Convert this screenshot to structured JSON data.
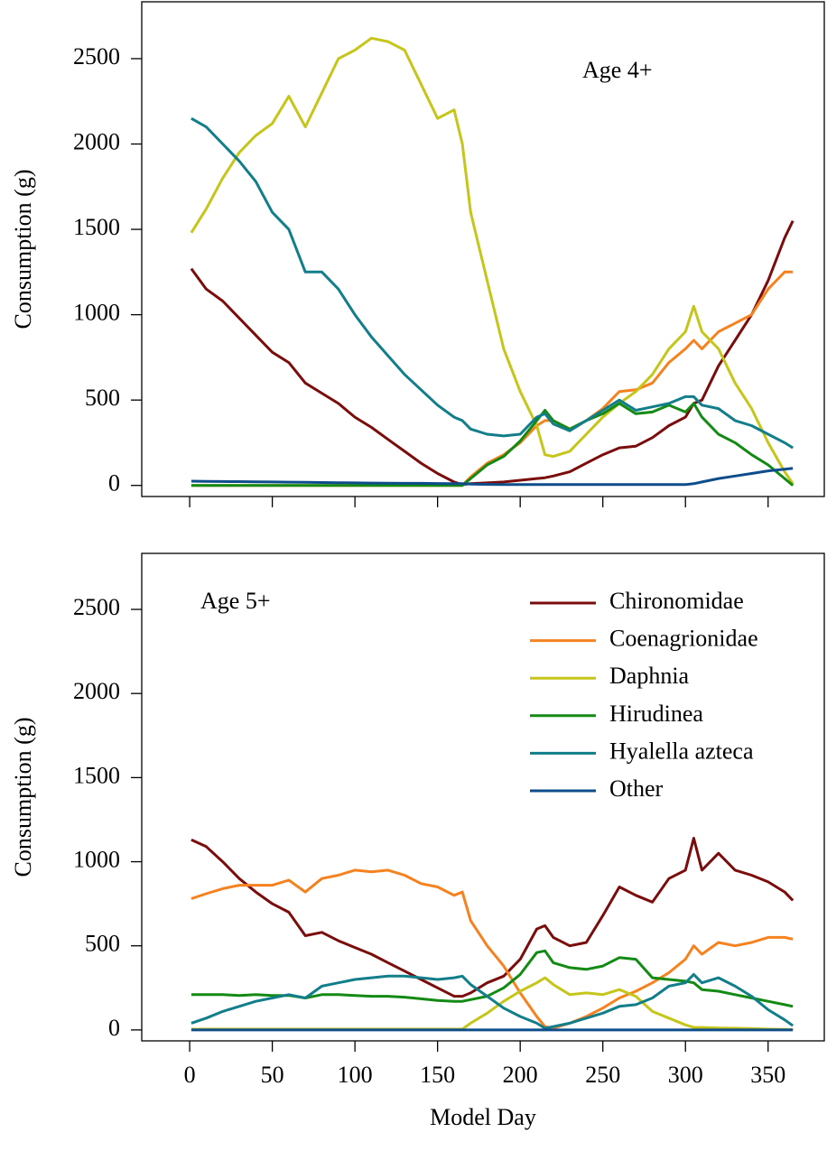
{
  "chart_data": [
    {
      "type": "line",
      "annotation": "Age 4+",
      "y_label": "Consumption (g)",
      "xlim": [
        -29,
        384
      ],
      "ylim": [
        -65,
        2833
      ],
      "xticks": [
        0,
        50,
        100,
        150,
        200,
        250,
        300,
        350
      ],
      "yticks": [
        0,
        500,
        1000,
        1500,
        2000,
        2500
      ],
      "show_xtick_labels": false,
      "legend": false,
      "x": [
        1,
        10,
        20,
        30,
        40,
        50,
        60,
        70,
        80,
        90,
        100,
        110,
        120,
        130,
        140,
        150,
        160,
        165,
        170,
        180,
        190,
        200,
        210,
        215,
        220,
        230,
        240,
        250,
        260,
        270,
        280,
        290,
        300,
        305,
        310,
        320,
        330,
        340,
        350,
        360,
        365
      ],
      "series": [
        {
          "color": "#7b0c0c",
          "values": [
            1270,
            1150,
            1080,
            980,
            880,
            780,
            720,
            600,
            540,
            480,
            400,
            340,
            270,
            200,
            130,
            70,
            20,
            5,
            10,
            15,
            20,
            30,
            40,
            45,
            55,
            80,
            130,
            180,
            220,
            230,
            280,
            350,
            400,
            480,
            500,
            700,
            850,
            1000,
            1200,
            1450,
            1550
          ]
        },
        {
          "color": "#f5821f",
          "values": [
            0,
            0,
            0,
            0,
            0,
            0,
            0,
            0,
            0,
            0,
            0,
            0,
            0,
            0,
            0,
            0,
            0,
            0,
            50,
            130,
            180,
            250,
            350,
            380,
            380,
            330,
            380,
            450,
            550,
            560,
            600,
            720,
            800,
            850,
            800,
            900,
            950,
            1000,
            1150,
            1250,
            1250
          ]
        },
        {
          "color": "#c5c51a",
          "values": [
            1480,
            1620,
            1800,
            1950,
            2050,
            2120,
            2280,
            2100,
            2300,
            2500,
            2550,
            2620,
            2600,
            2550,
            2350,
            2150,
            2200,
            2000,
            1600,
            1200,
            800,
            550,
            350,
            180,
            170,
            200,
            300,
            400,
            480,
            550,
            650,
            800,
            900,
            1050,
            900,
            800,
            600,
            450,
            250,
            80,
            10
          ]
        },
        {
          "color": "#138a13",
          "values": [
            0,
            0,
            0,
            0,
            0,
            0,
            0,
            0,
            0,
            0,
            0,
            0,
            0,
            0,
            0,
            0,
            0,
            0,
            40,
            120,
            170,
            260,
            380,
            440,
            380,
            330,
            380,
            420,
            480,
            420,
            430,
            470,
            430,
            480,
            400,
            300,
            250,
            180,
            120,
            40,
            0
          ]
        },
        {
          "color": "#117e8a",
          "values": [
            2150,
            2100,
            2000,
            1900,
            1780,
            1600,
            1500,
            1250,
            1250,
            1150,
            1000,
            870,
            760,
            650,
            560,
            470,
            400,
            380,
            330,
            300,
            290,
            300,
            400,
            420,
            360,
            320,
            380,
            440,
            500,
            440,
            460,
            480,
            520,
            520,
            470,
            450,
            380,
            350,
            300,
            250,
            220
          ]
        },
        {
          "color": "#0e4d8c",
          "values": [
            25,
            24,
            23,
            22,
            21,
            20,
            19,
            18,
            17,
            16,
            15,
            14,
            13,
            12,
            12,
            11,
            10,
            10,
            8,
            6,
            5,
            5,
            5,
            5,
            5,
            5,
            5,
            5,
            5,
            5,
            5,
            5,
            5,
            10,
            20,
            40,
            55,
            70,
            85,
            95,
            100
          ]
        }
      ]
    },
    {
      "type": "line",
      "annotation": "Age 5+",
      "y_label": "Consumption (g)",
      "x_label": "Model Day",
      "xlim": [
        -29,
        384
      ],
      "ylim": [
        -65,
        2833
      ],
      "xticks": [
        0,
        50,
        100,
        150,
        200,
        250,
        300,
        350
      ],
      "yticks": [
        0,
        500,
        1000,
        1500,
        2000,
        2500
      ],
      "show_xtick_labels": true,
      "legend": "upper right",
      "x": [
        1,
        10,
        20,
        30,
        40,
        50,
        60,
        70,
        80,
        90,
        100,
        110,
        120,
        130,
        140,
        150,
        160,
        165,
        170,
        180,
        190,
        200,
        210,
        215,
        220,
        230,
        240,
        250,
        260,
        270,
        280,
        290,
        300,
        305,
        310,
        320,
        330,
        340,
        350,
        360,
        365
      ],
      "series": [
        {
          "name": "Chironomidae",
          "color": "#7b0c0c",
          "values": [
            1130,
            1090,
            1000,
            900,
            820,
            750,
            700,
            560,
            580,
            530,
            490,
            450,
            400,
            350,
            300,
            250,
            200,
            200,
            220,
            280,
            320,
            420,
            600,
            620,
            550,
            500,
            520,
            680,
            850,
            800,
            760,
            900,
            950,
            1140,
            950,
            1050,
            950,
            920,
            880,
            820,
            770
          ]
        },
        {
          "name": "Coenagrionidae",
          "color": "#f5821f",
          "values": [
            780,
            810,
            840,
            860,
            860,
            860,
            890,
            820,
            900,
            920,
            950,
            940,
            950,
            920,
            870,
            850,
            800,
            820,
            650,
            500,
            380,
            220,
            80,
            20,
            10,
            40,
            80,
            130,
            190,
            230,
            280,
            340,
            420,
            500,
            450,
            520,
            500,
            520,
            550,
            550,
            540
          ]
        },
        {
          "name": "Daphnia",
          "color": "#c5c51a",
          "values": [
            5,
            5,
            5,
            5,
            5,
            5,
            5,
            5,
            5,
            5,
            5,
            5,
            5,
            5,
            5,
            5,
            5,
            5,
            40,
            100,
            170,
            230,
            280,
            310,
            270,
            210,
            220,
            210,
            240,
            200,
            110,
            70,
            30,
            15,
            15,
            12,
            10,
            8,
            5,
            3,
            2
          ]
        },
        {
          "name": "Hirudinea",
          "color": "#138a13",
          "values": [
            210,
            210,
            210,
            205,
            210,
            205,
            205,
            190,
            210,
            210,
            205,
            200,
            200,
            195,
            185,
            175,
            170,
            170,
            180,
            200,
            250,
            330,
            460,
            470,
            400,
            370,
            360,
            380,
            430,
            420,
            310,
            300,
            290,
            280,
            240,
            230,
            210,
            190,
            170,
            150,
            140
          ]
        },
        {
          "name": "Hyalella azteca",
          "color": "#117e8a",
          "values": [
            40,
            70,
            110,
            140,
            170,
            190,
            210,
            190,
            260,
            280,
            300,
            310,
            320,
            320,
            310,
            300,
            310,
            320,
            270,
            200,
            130,
            80,
            40,
            10,
            20,
            40,
            70,
            100,
            140,
            150,
            190,
            260,
            280,
            330,
            280,
            310,
            260,
            200,
            120,
            60,
            25
          ]
        },
        {
          "name": "Other",
          "color": "#0e4d8c",
          "values": [
            0,
            0,
            0,
            0,
            0,
            0,
            0,
            0,
            0,
            0,
            0,
            0,
            0,
            0,
            0,
            0,
            0,
            0,
            0,
            0,
            0,
            0,
            0,
            0,
            0,
            0,
            0,
            0,
            0,
            0,
            0,
            0,
            0,
            0,
            0,
            0,
            0,
            0,
            0,
            0,
            0
          ]
        }
      ]
    }
  ]
}
